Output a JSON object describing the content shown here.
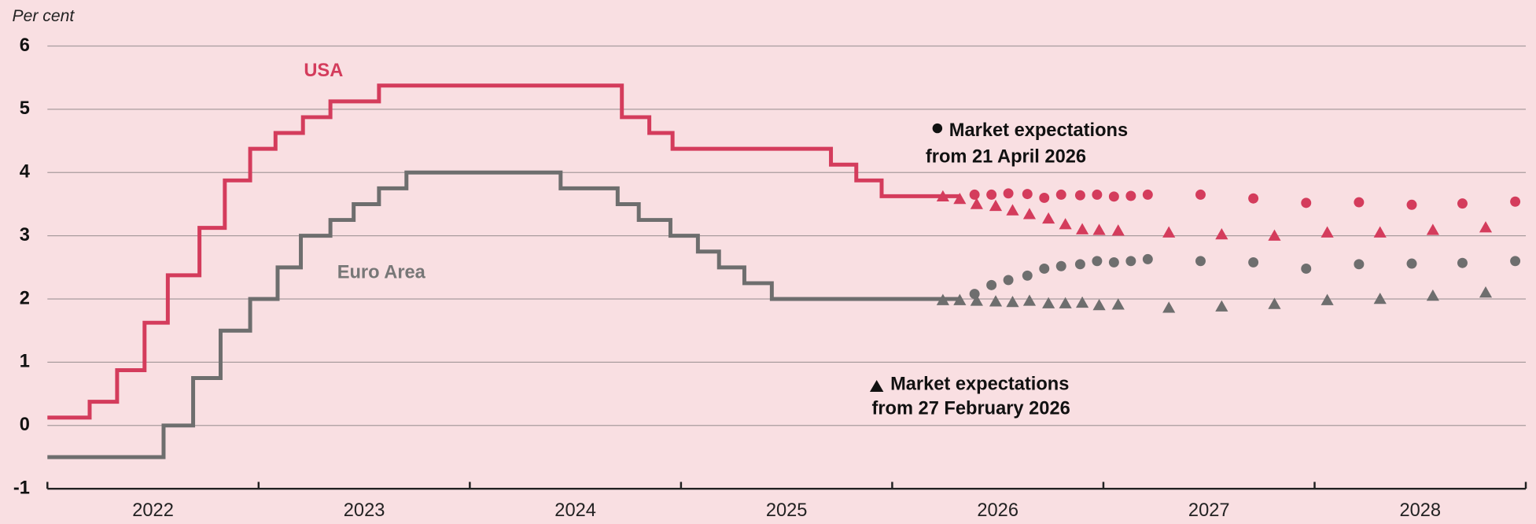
{
  "chart_data": {
    "type": "step-expectations",
    "y_label": "Per cent",
    "ylim": [
      -1,
      6
    ],
    "yticks": [
      -1,
      0,
      1,
      2,
      3,
      4,
      5,
      6
    ],
    "xlim": [
      2022,
      2029
    ],
    "xticks": [
      2022,
      2023,
      2024,
      2025,
      2026,
      2027,
      2028,
      2029
    ],
    "year_labels": [
      "2022",
      "2023",
      "2024",
      "2025",
      "2026",
      "2027",
      "2028"
    ],
    "grid": true,
    "annotations": [
      "USA",
      "Euro Area",
      "Market expectations",
      "from 21 April 2026",
      "Market expectations",
      "from 27 February 2026"
    ],
    "series": [
      {
        "name": "USA",
        "color": "#d43c5c",
        "kind": "step",
        "x": [
          2022.0,
          2022.2,
          2022.33,
          2022.46,
          2022.57,
          2022.72,
          2022.84,
          2022.96,
          2023.08,
          2023.21,
          2023.34,
          2023.57,
          2024.72,
          2024.85,
          2024.96,
          2025.71,
          2025.83,
          2025.95,
          2026.32
        ],
        "values": [
          0.125,
          0.375,
          0.875,
          1.625,
          2.375,
          3.125,
          3.875,
          4.375,
          4.625,
          4.875,
          5.125,
          5.375,
          4.875,
          4.625,
          4.375,
          4.125,
          3.875,
          3.625,
          3.625
        ]
      },
      {
        "name": "Euro Area",
        "color": "#6e6e6e",
        "kind": "step",
        "x": [
          2022.0,
          2022.55,
          2022.69,
          2022.82,
          2022.96,
          2023.09,
          2023.2,
          2023.34,
          2023.45,
          2023.57,
          2023.7,
          2024.43,
          2024.7,
          2024.8,
          2024.95,
          2025.08,
          2025.18,
          2025.3,
          2025.43,
          2026.32
        ],
        "values": [
          -0.5,
          0,
          0.75,
          1.5,
          2.0,
          2.5,
          3.0,
          3.25,
          3.5,
          3.75,
          4.0,
          3.75,
          3.5,
          3.25,
          3.0,
          2.75,
          2.5,
          2.25,
          2.0,
          2.0
        ]
      },
      {
        "name": "USA",
        "color": "#d43c5c",
        "kind": "circle",
        "x": [
          2026.39,
          2026.47,
          2026.55,
          2026.64,
          2026.72,
          2026.8,
          2026.89,
          2026.97,
          2027.05,
          2027.13,
          2027.21,
          2027.46,
          2027.71,
          2027.96,
          2028.21,
          2028.46,
          2028.7,
          2028.95
        ],
        "values": [
          3.65,
          3.65,
          3.67,
          3.66,
          3.6,
          3.65,
          3.64,
          3.65,
          3.62,
          3.63,
          3.65,
          3.65,
          3.59,
          3.52,
          3.53,
          3.49,
          3.51,
          3.54
        ]
      },
      {
        "name": "USA",
        "color": "#d43c5c",
        "kind": "triangle",
        "x": [
          2026.24,
          2026.32,
          2026.4,
          2026.49,
          2026.57,
          2026.65,
          2026.74,
          2026.82,
          2026.9,
          2026.98,
          2027.07,
          2027.31,
          2027.56,
          2027.81,
          2028.06,
          2028.31,
          2028.56,
          2028.81
        ],
        "values": [
          3.62,
          3.58,
          3.5,
          3.47,
          3.4,
          3.34,
          3.27,
          3.18,
          3.1,
          3.09,
          3.08,
          3.05,
          3.02,
          3.0,
          3.05,
          3.05,
          3.09,
          3.13
        ]
      },
      {
        "name": "Euro Area",
        "color": "#6e6e6e",
        "kind": "circle",
        "x": [
          2026.39,
          2026.47,
          2026.55,
          2026.64,
          2026.72,
          2026.8,
          2026.89,
          2026.97,
          2027.05,
          2027.13,
          2027.21,
          2027.46,
          2027.71,
          2027.96,
          2028.21,
          2028.46,
          2028.7,
          2028.95
        ],
        "values": [
          2.08,
          2.22,
          2.3,
          2.37,
          2.48,
          2.52,
          2.55,
          2.6,
          2.58,
          2.6,
          2.63,
          2.6,
          2.58,
          2.48,
          2.55,
          2.56,
          2.57,
          2.6
        ]
      },
      {
        "name": "Euro Area",
        "color": "#6e6e6e",
        "kind": "triangle",
        "x": [
          2026.24,
          2026.32,
          2026.4,
          2026.49,
          2026.57,
          2026.65,
          2026.74,
          2026.82,
          2026.9,
          2026.98,
          2027.07,
          2027.31,
          2027.56,
          2027.81,
          2028.06,
          2028.31,
          2028.56,
          2028.81
        ],
        "values": [
          1.98,
          1.98,
          1.97,
          1.96,
          1.95,
          1.97,
          1.93,
          1.93,
          1.94,
          1.9,
          1.91,
          1.86,
          1.88,
          1.92,
          1.98,
          2.0,
          2.05,
          2.1
        ]
      }
    ]
  }
}
